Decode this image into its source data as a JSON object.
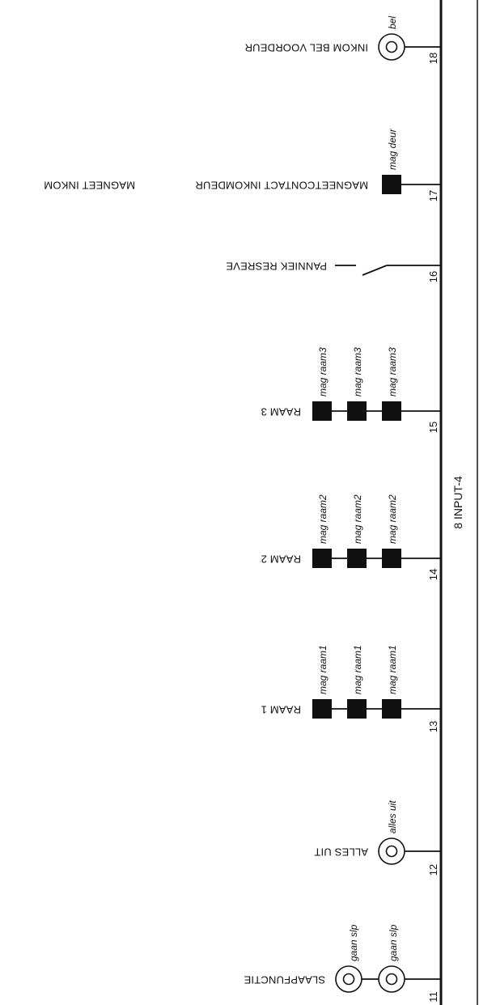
{
  "bus_label": "8 INPUT-4",
  "terminals": [
    {
      "number": "11",
      "label": "SLAAPFUNCTIE",
      "device_labels": [
        "gaan slp",
        "gaan slp"
      ]
    },
    {
      "number": "12",
      "label": "ALLES UIT",
      "device_labels": [
        "alles uit"
      ]
    },
    {
      "number": "13",
      "label": "RAAM 1",
      "device_labels": [
        "mag raam1",
        "mag raam1",
        "mag raam1"
      ]
    },
    {
      "number": "14",
      "label": "RAAM 2",
      "device_labels": [
        "mag raam2",
        "mag raam2",
        "mag raam2"
      ]
    },
    {
      "number": "15",
      "label": "RAAM 3",
      "device_labels": [
        "mag raam3",
        "mag raam3",
        "mag raam3"
      ]
    },
    {
      "number": "16",
      "label": "PANNIEK RESREVE",
      "device_labels": []
    },
    {
      "number": "17",
      "label": "MAGNEETCONTACT INKOMDEUR",
      "secondary_label": "MAGNEET INKOM",
      "device_labels": [
        "mag deur"
      ]
    },
    {
      "number": "18",
      "label": "INKOM BEL VOORDEUR",
      "device_labels": [
        "bel"
      ]
    }
  ],
  "colors": {
    "line": "#111111",
    "fill": "#111111"
  }
}
